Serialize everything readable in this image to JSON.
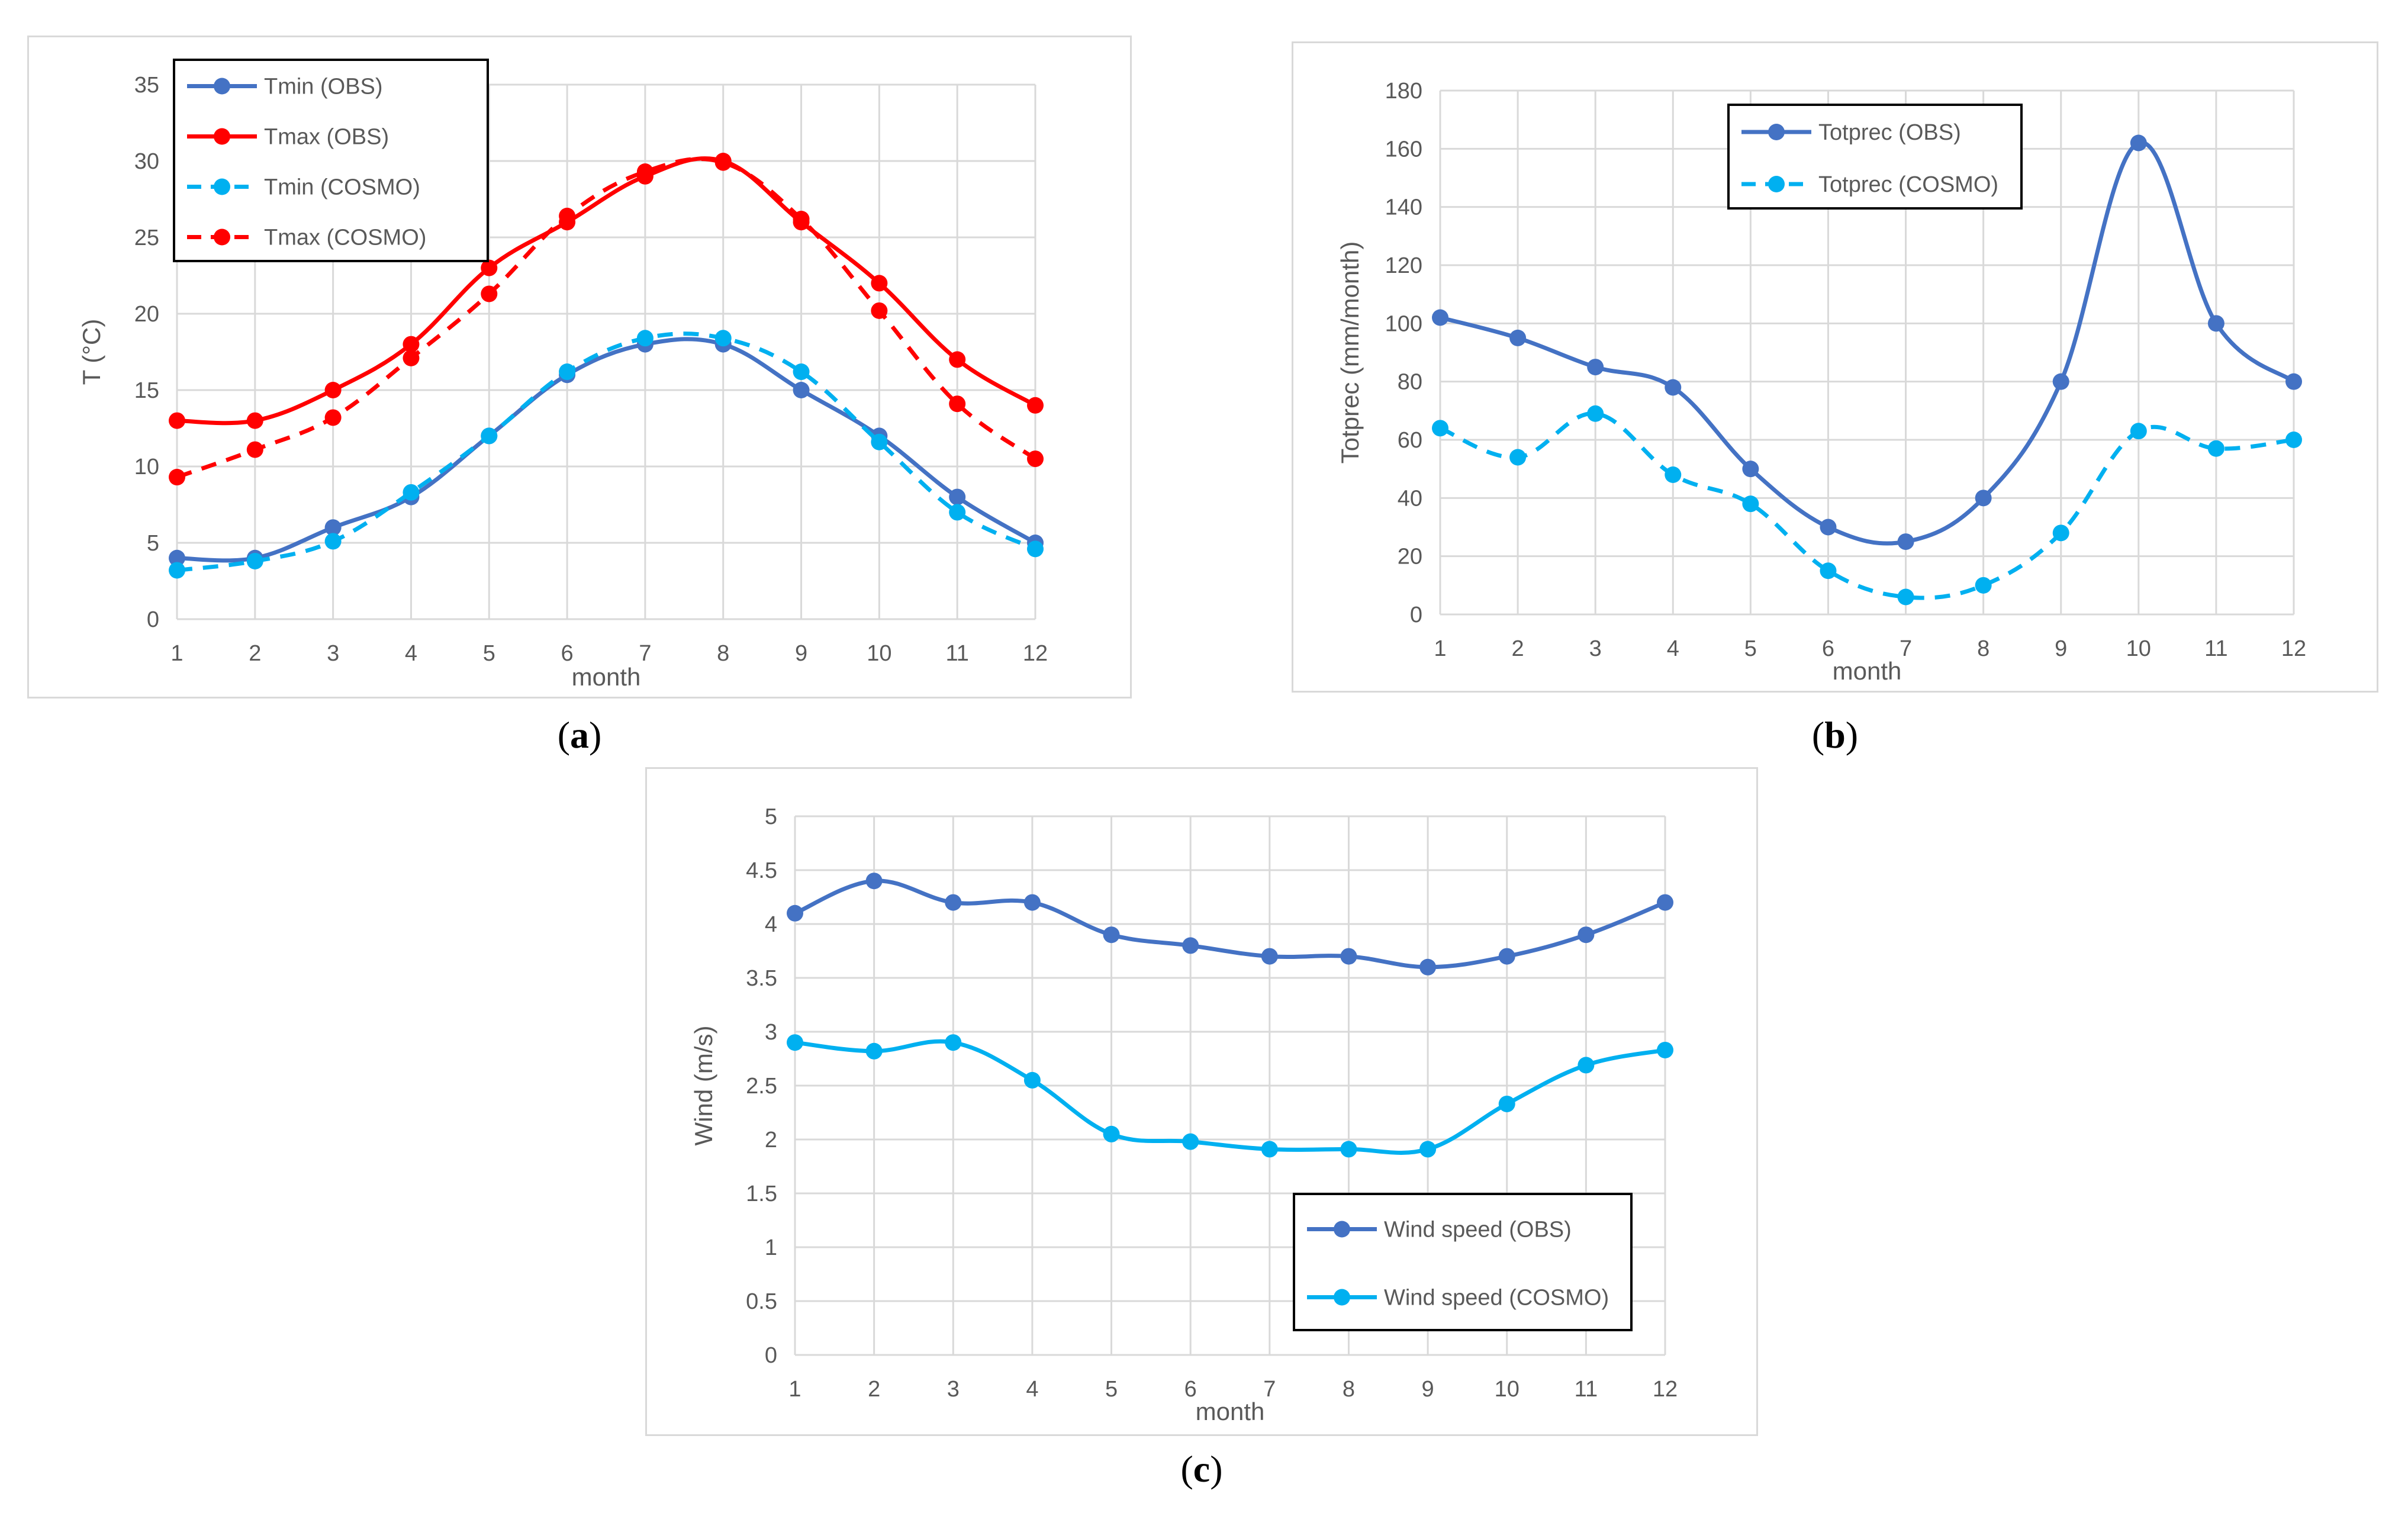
{
  "captions": {
    "a": "a",
    "b": "b",
    "c": "c"
  },
  "colors": {
    "obs_blue": "#4472c4",
    "cosmo_cyan": "#00b0f0",
    "obs_red": "#ff0000",
    "cosmo_red": "#ff0000",
    "grid": "#d9d9d9"
  },
  "chart_data": [
    {
      "id": "a",
      "type": "line",
      "title": "",
      "xlabel": "month",
      "ylabel": "T (°C)",
      "ylim": [
        0,
        35
      ],
      "yticks": [
        "0",
        "5",
        "10",
        "15",
        "20",
        "25",
        "30",
        "35"
      ],
      "categories": [
        "1",
        "2",
        "3",
        "4",
        "5",
        "6",
        "7",
        "8",
        "9",
        "10",
        "11",
        "12"
      ],
      "legend_position": "top-left",
      "series": [
        {
          "name": "Tmin (OBS)",
          "values": [
            4,
            4,
            6,
            8,
            12,
            16,
            18,
            18,
            15,
            12,
            8,
            5
          ],
          "color": "#4472c4",
          "dashed": false
        },
        {
          "name": "Tmax (OBS)",
          "values": [
            13,
            13,
            15,
            18,
            23,
            26,
            29,
            30,
            26,
            22,
            17,
            14
          ],
          "color": "#ff0000",
          "dashed": false
        },
        {
          "name": "Tmin (COSMO)",
          "values": [
            3.2,
            3.8,
            5.1,
            8.3,
            12,
            16.2,
            18.4,
            18.4,
            16.2,
            11.6,
            7,
            4.6
          ],
          "color": "#00b0f0",
          "dashed": true
        },
        {
          "name": "Tmax (COSMO)",
          "values": [
            9.3,
            11.1,
            13.2,
            17.1,
            21.3,
            26.4,
            29.3,
            29.9,
            26.2,
            20.2,
            14.1,
            10.5
          ],
          "color": "#ff0000",
          "dashed": true
        }
      ]
    },
    {
      "id": "b",
      "type": "line",
      "title": "",
      "xlabel": "month",
      "ylabel": "Totprec (mm/month)",
      "ylim": [
        0,
        180
      ],
      "yticks": [
        "0",
        "20",
        "40",
        "60",
        "80",
        "100",
        "120",
        "140",
        "160",
        "180"
      ],
      "categories": [
        "1",
        "2",
        "3",
        "4",
        "5",
        "6",
        "7",
        "8",
        "9",
        "10",
        "11",
        "12"
      ],
      "legend_position": "top-left",
      "series": [
        {
          "name": "Totprec (OBS)",
          "values": [
            102,
            95,
            85,
            78,
            50,
            30,
            25,
            40,
            80,
            162,
            100,
            80
          ],
          "color": "#4472c4",
          "dashed": false
        },
        {
          "name": "Totprec (COSMO)",
          "values": [
            64,
            54,
            69,
            48,
            38,
            15,
            6,
            10,
            28,
            63,
            57,
            60
          ],
          "color": "#00b0f0",
          "dashed": true
        }
      ]
    },
    {
      "id": "c",
      "type": "line",
      "title": "",
      "xlabel": "month",
      "ylabel": "Wind (m/s)",
      "ylim": [
        0,
        5
      ],
      "yticks": [
        "0",
        "0.5",
        "1",
        "1.5",
        "2",
        "2.5",
        "3",
        "3.5",
        "4",
        "4.5",
        "5"
      ],
      "categories": [
        "1",
        "2",
        "3",
        "4",
        "5",
        "6",
        "7",
        "8",
        "9",
        "10",
        "11",
        "12"
      ],
      "legend_position": "bottom-right",
      "series": [
        {
          "name": "Wind speed (OBS)",
          "values": [
            4.1,
            4.4,
            4.2,
            4.2,
            3.9,
            3.8,
            3.7,
            3.7,
            3.6,
            3.7,
            3.9,
            4.2
          ],
          "color": "#4472c4",
          "dashed": false
        },
        {
          "name": "Wind speed (COSMO)",
          "values": [
            2.9,
            2.82,
            2.9,
            2.55,
            2.05,
            1.98,
            1.91,
            1.91,
            1.91,
            2.33,
            2.69,
            2.83
          ],
          "color": "#00b0f0",
          "dashed": false
        }
      ]
    }
  ]
}
